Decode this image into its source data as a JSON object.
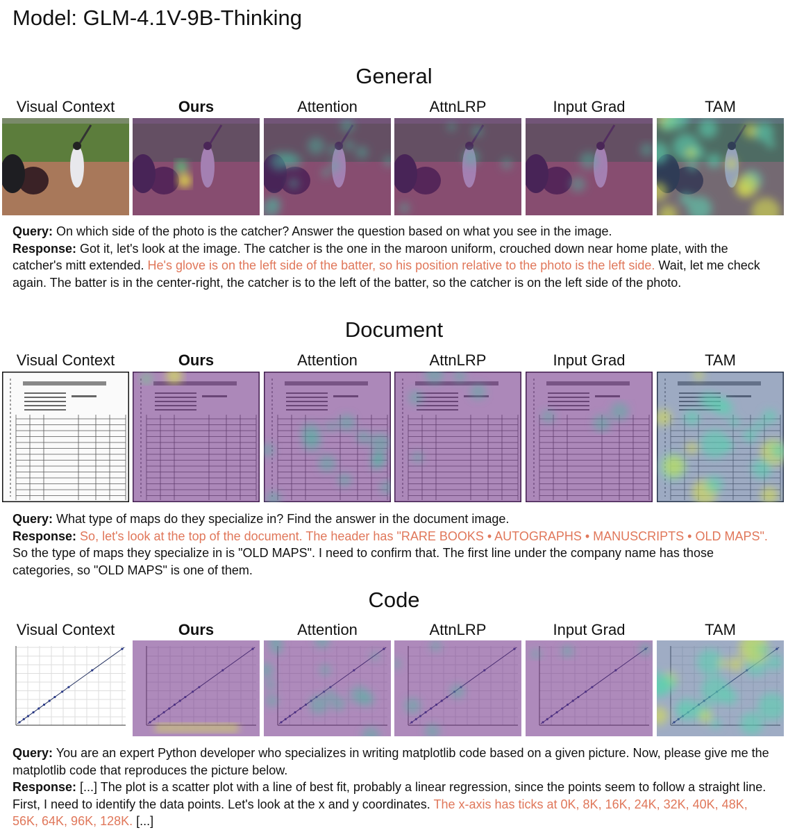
{
  "title": "Model: GLM-4.1V-9B-Thinking",
  "sections": [
    {
      "heading": "General",
      "columns": [
        "Visual Context",
        "Ours",
        "Attention",
        "AttnLRP",
        "Input Grad",
        "TAM"
      ],
      "query_label": "Query:",
      "query": "On which side of the photo is the catcher? Answer the question based on what you see in the image.",
      "response_label": "Response:",
      "response": [
        {
          "text": "Got it, let's look at the image. The catcher is the one in the maroon uniform, crouched down near home plate, with the catcher's mitt extended. ",
          "highlight": false
        },
        {
          "text": "He's glove is on the left side of the batter, so his position relative to the photo is the left side.",
          "highlight": true
        },
        {
          "text": " Wait, let me check again. The batter is in the center-right, the catcher is to the left of the batter, so the catcher is on the left side of the photo.",
          "highlight": false
        }
      ]
    },
    {
      "heading": "Document",
      "columns": [
        "Visual Context",
        "Ours",
        "Attention",
        "AttnLRP",
        "Input Grad",
        "TAM"
      ],
      "query_label": "Query:",
      "query": "What type of maps do they specialize in? Find the answer in the document image.",
      "response_label": "Response:",
      "response": [
        {
          "text": "So, let's look at the top of the document. The header has \"RARE BOOKS • AUTOGRAPHS • MANUSCRIPTS • OLD MAPS\".",
          "highlight": true
        },
        {
          "text": " So the type of maps they specialize in is \"OLD MAPS\". I need to confirm that. The first line under the company name has those categories, so \"OLD MAPS\" is one of them.",
          "highlight": false
        }
      ]
    },
    {
      "heading": "Code",
      "columns": [
        "Visual Context",
        "Ours",
        "Attention",
        "AttnLRP",
        "Input Grad",
        "TAM"
      ],
      "query_label": "Query:",
      "query": "You are an expert Python developer who specializes in writing matplotlib code based on a given picture. Now, please give me the matplotlib code that reproduces the picture below.",
      "response_label": "Response:",
      "response": [
        {
          "text": "[...] The plot is a scatter plot with a line of best fit, probably a linear regression, since the points seem to follow a straight line.  First, I need to identify the data points.  Let's look at the x and y coordinates. ",
          "highlight": false
        },
        {
          "text": "The x-axis has ticks at 0K, 8K, 16K, 24K, 32K, 40K, 48K, 56K, 64K, 96K, 128K.",
          "highlight": true
        },
        {
          "text": " [...]",
          "highlight": false
        }
      ]
    }
  ]
}
